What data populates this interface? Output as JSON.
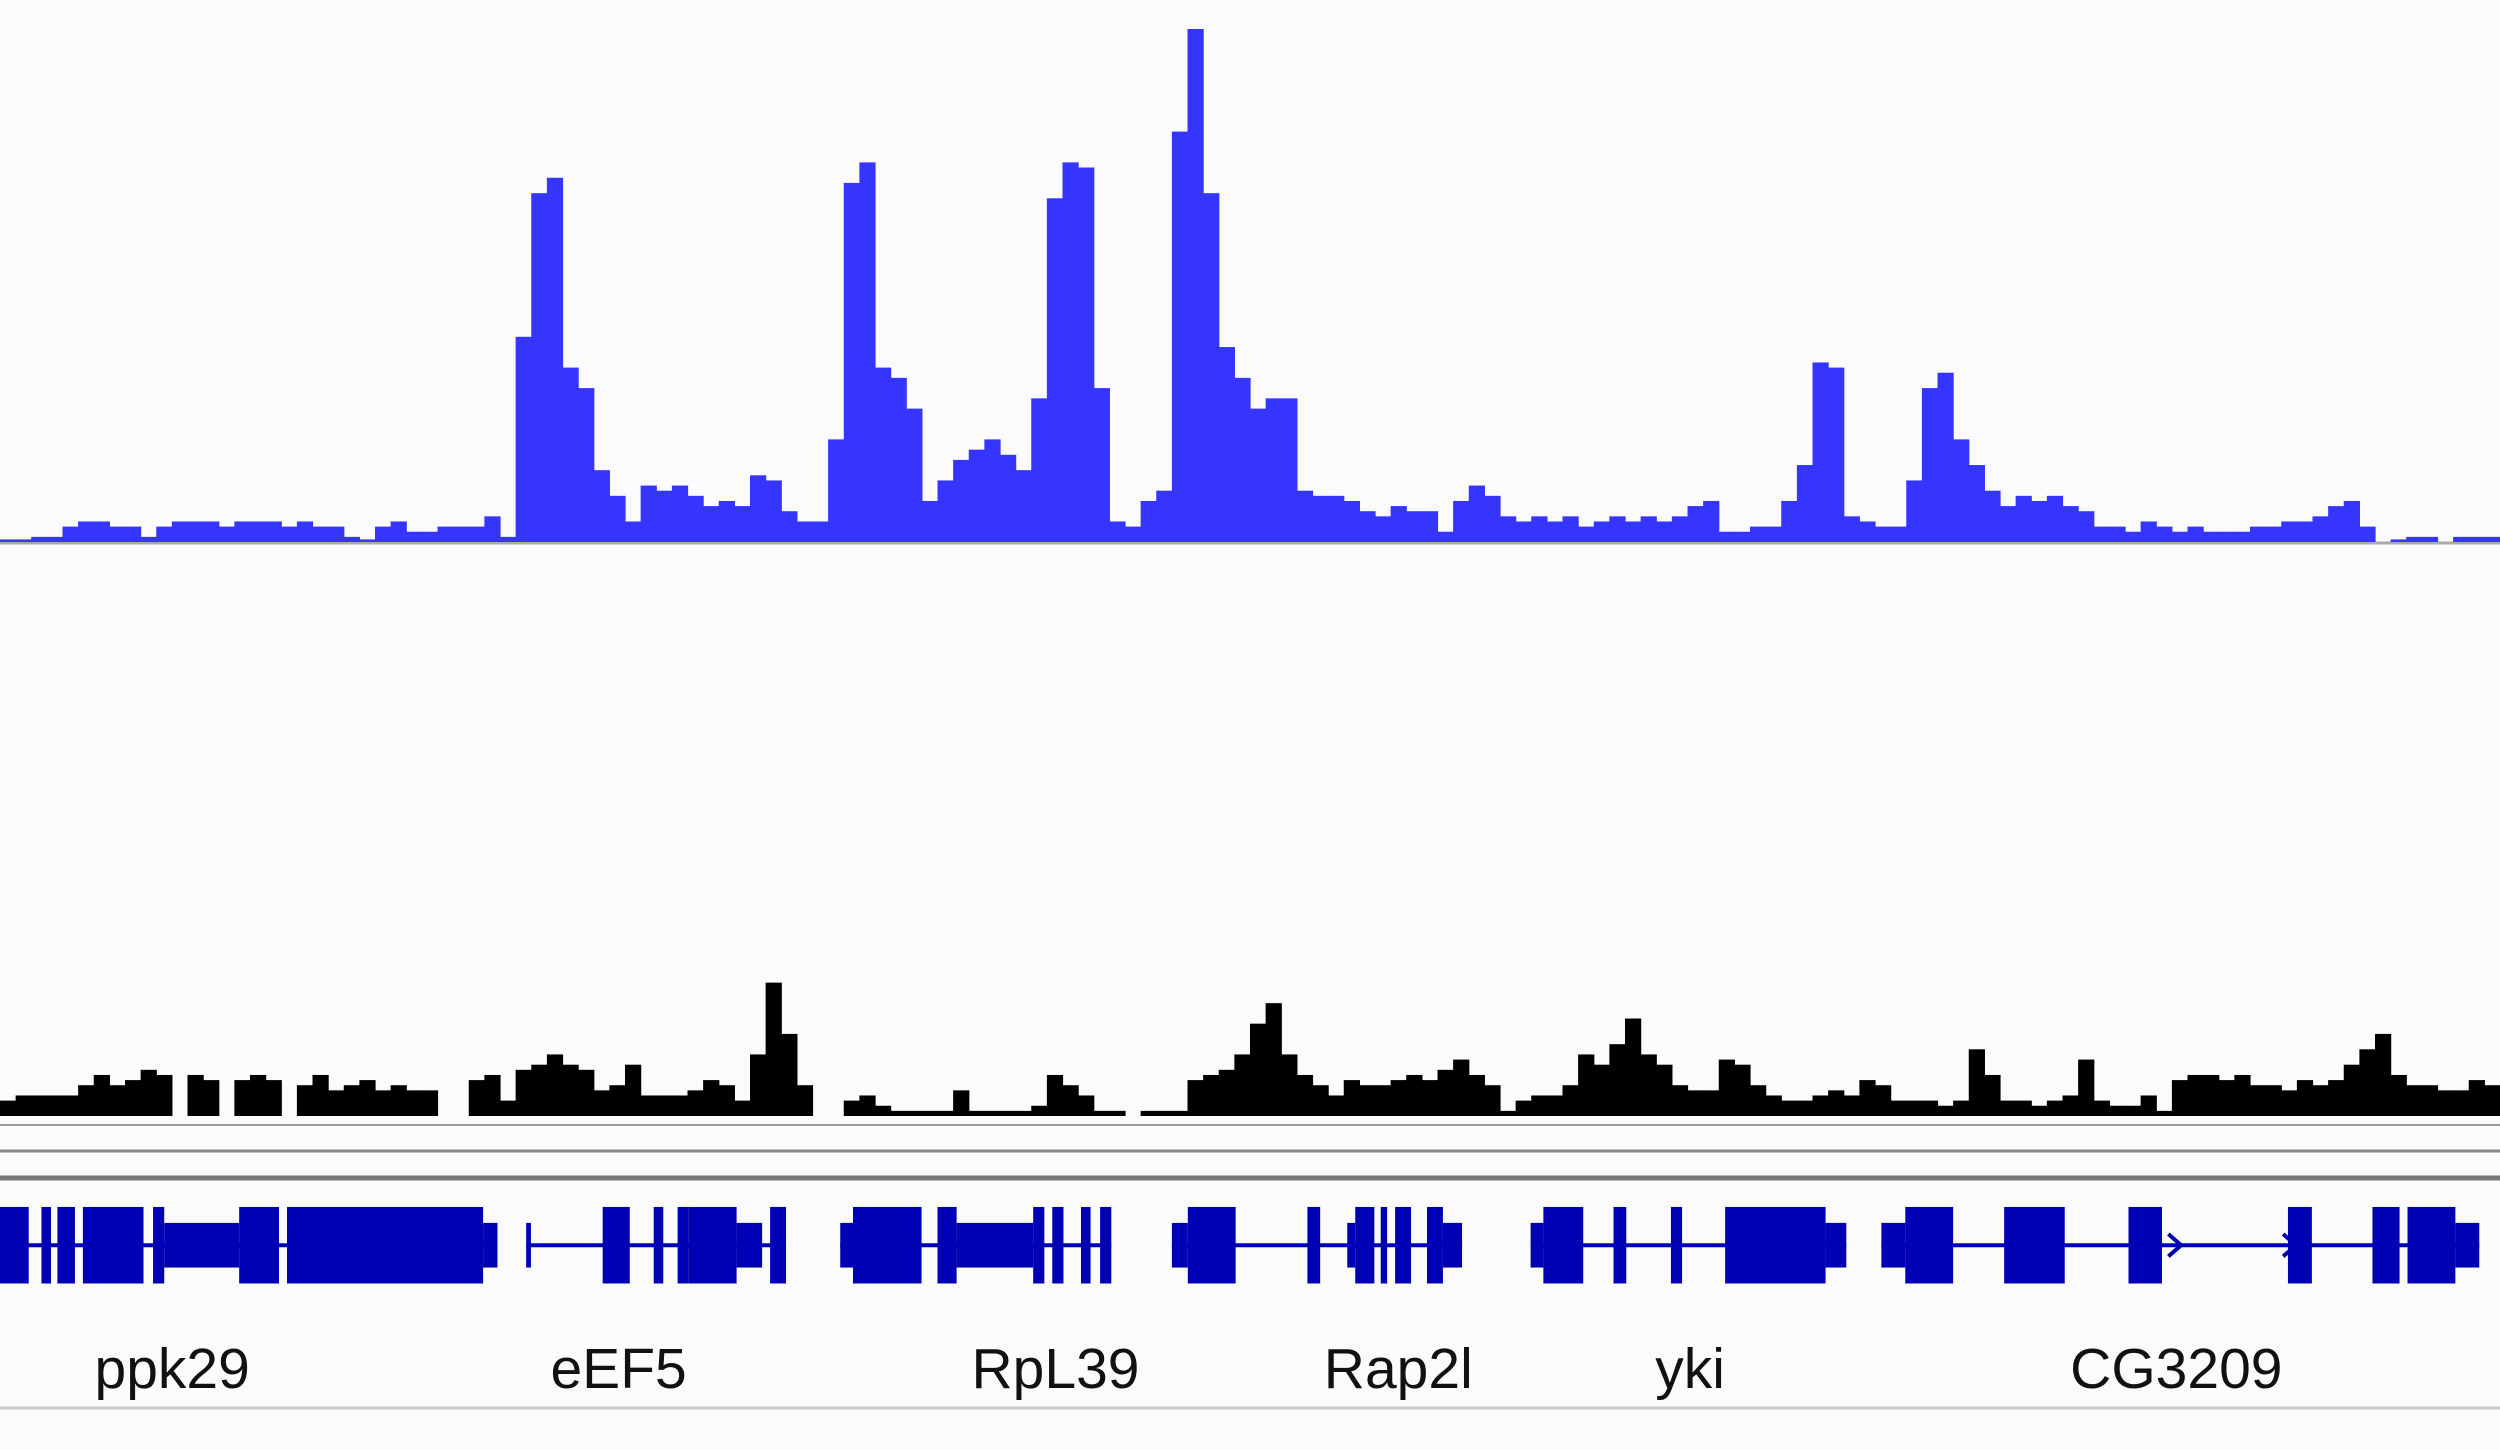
{
  "tracks": [
    {
      "color": "#3535ff",
      "values": [
        0.5,
        0.5,
        1,
        1,
        3,
        4,
        4,
        3,
        3,
        1,
        3,
        4,
        4,
        4,
        3,
        4,
        4,
        4,
        3,
        4,
        3,
        3,
        1,
        0.5,
        3,
        4,
        2,
        2,
        3,
        3,
        3,
        5,
        1,
        40,
        68,
        71,
        34,
        30,
        14,
        9,
        4,
        11,
        10,
        11,
        9,
        7,
        8,
        7,
        13,
        12,
        6,
        4,
        4,
        20,
        70,
        74,
        34,
        32,
        26,
        8,
        12,
        16,
        18,
        20,
        17,
        14,
        28,
        67,
        74,
        73,
        30,
        4,
        3,
        8,
        10,
        80,
        100,
        68,
        38,
        32,
        26,
        28,
        28,
        10,
        9,
        9,
        8,
        6,
        5,
        7,
        6,
        6,
        2,
        8,
        11,
        9,
        5,
        4,
        5,
        4,
        5,
        3,
        4,
        5,
        4,
        5,
        4,
        5,
        7,
        8,
        2,
        2,
        3,
        3,
        8,
        15,
        35,
        34,
        5,
        4,
        3,
        3,
        12,
        30,
        33,
        20,
        15,
        10,
        7,
        9,
        8,
        9,
        7,
        6,
        3,
        3,
        2,
        4,
        3,
        2,
        3,
        2,
        2,
        2,
        3,
        3,
        4,
        4,
        5,
        7,
        8,
        3,
        0,
        0.5,
        1,
        1,
        0,
        1,
        1,
        1
      ]
    },
    {
      "color": "#000000",
      "values": [
        3,
        4,
        4,
        4,
        4,
        6,
        8,
        6,
        7,
        9,
        8,
        0,
        8,
        7,
        0,
        7,
        8,
        7,
        0,
        6,
        8,
        5,
        6,
        7,
        5,
        6,
        5,
        5,
        0,
        0,
        7,
        8,
        3,
        9,
        10,
        12,
        10,
        9,
        5,
        6,
        10,
        4,
        4,
        4,
        5,
        7,
        6,
        3,
        12,
        26,
        16,
        6,
        0,
        0,
        3,
        4,
        2,
        1,
        1,
        1,
        1,
        5,
        1,
        1,
        1,
        1,
        2,
        8,
        6,
        4,
        1,
        1,
        0,
        1,
        1,
        1,
        7,
        8,
        9,
        12,
        18,
        22,
        12,
        8,
        6,
        4,
        7,
        6,
        6,
        7,
        8,
        7,
        9,
        11,
        8,
        6,
        1,
        3,
        4,
        4,
        6,
        12,
        10,
        14,
        19,
        12,
        10,
        6,
        5,
        5,
        11,
        10,
        6,
        4,
        3,
        3,
        4,
        5,
        4,
        7,
        6,
        3,
        3,
        3,
        2,
        3,
        13,
        8,
        3,
        3,
        2,
        3,
        4,
        11,
        3,
        2,
        2,
        4,
        1,
        7,
        8,
        8,
        7,
        8,
        6,
        6,
        5,
        7,
        6,
        7,
        10,
        13,
        16,
        8,
        6,
        6,
        5,
        5,
        7,
        6
      ]
    }
  ],
  "genes": [
    {
      "label": "ppk29"
    },
    {
      "label": "eEF5"
    },
    {
      "label": "RpL39"
    },
    {
      "label": "Rap2l"
    },
    {
      "label": "yki"
    },
    {
      "label": "CG3209"
    }
  ],
  "gene_color": "#0000b4"
}
